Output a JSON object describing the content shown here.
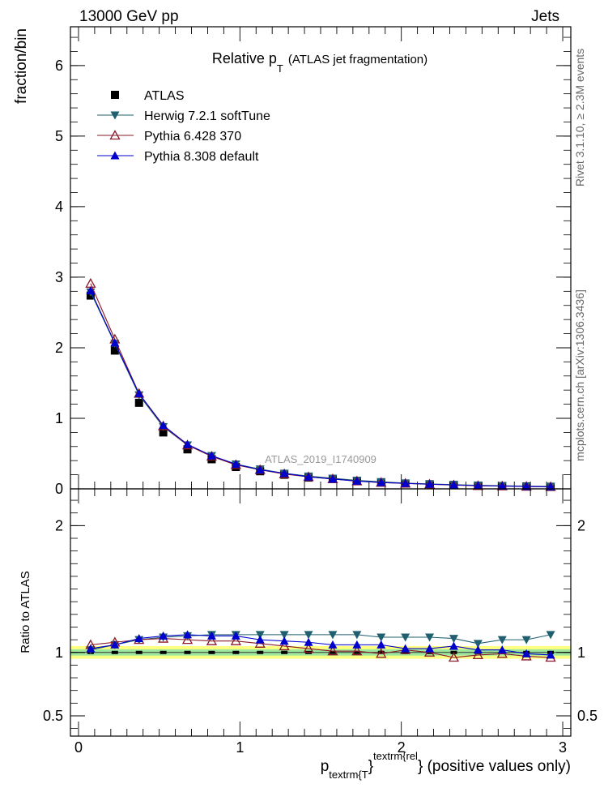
{
  "header": {
    "left": "13000 GeV pp",
    "right": "Jets"
  },
  "side_labels": {
    "rivet": "Rivet 3.1.10, ≥ 2.3M events",
    "mcplots": "mcplots.cern.ch [arXiv:1306.3436]"
  },
  "chart_data": [
    {
      "type": "scatter",
      "title": "Relative p",
      "title_sub": "T",
      "title_suffix": "(ATLAS jet fragmentation)",
      "watermark": "ATLAS_2019_I1740909",
      "ylabel": "fraction/bin",
      "xlim": [
        -0.05,
        3.05
      ],
      "ylim": [
        0,
        6.55
      ],
      "yticks": [
        0,
        1,
        2,
        3,
        4,
        5,
        6
      ],
      "legend_placement": "top-left",
      "x": [
        0.075,
        0.225,
        0.375,
        0.525,
        0.675,
        0.825,
        0.975,
        1.125,
        1.275,
        1.425,
        1.575,
        1.725,
        1.875,
        2.025,
        2.175,
        2.325,
        2.475,
        2.625,
        2.775,
        2.925
      ],
      "series": [
        {
          "name": "ATLAS",
          "color": "#000000",
          "marker": "square",
          "values": [
            2.74,
            1.96,
            1.22,
            0.8,
            0.56,
            0.42,
            0.31,
            0.25,
            0.2,
            0.16,
            0.14,
            0.11,
            0.09,
            0.075,
            0.065,
            0.055,
            0.045,
            0.04,
            0.035,
            0.03
          ]
        },
        {
          "name": "Herwig 7.2.1 softTune",
          "color": "#1f5f6f",
          "marker": "triangle-down",
          "values": [
            2.79,
            2.06,
            1.33,
            0.88,
            0.62,
            0.47,
            0.35,
            0.28,
            0.22,
            0.18,
            0.15,
            0.12,
            0.1,
            0.082,
            0.07,
            0.06,
            0.05,
            0.044,
            0.038,
            0.034
          ]
        },
        {
          "name": "Pythia 6.428 370",
          "color": "#8b1a2b",
          "marker": "triangle-up-open",
          "values": [
            2.91,
            2.12,
            1.35,
            0.89,
            0.62,
            0.46,
            0.34,
            0.27,
            0.21,
            0.17,
            0.14,
            0.11,
            0.09,
            0.077,
            0.065,
            0.053,
            0.044,
            0.039,
            0.034,
            0.029
          ]
        },
        {
          "name": "Pythia 8.308 default",
          "color": "#0000cc",
          "marker": "triangle-up",
          "values": [
            2.81,
            2.07,
            1.35,
            0.9,
            0.63,
            0.47,
            0.35,
            0.27,
            0.22,
            0.17,
            0.14,
            0.11,
            0.09,
            0.078,
            0.066,
            0.056,
            0.046,
            0.04,
            0.034,
            0.03
          ]
        }
      ]
    },
    {
      "type": "scatter",
      "ylabel": "Ratio to ATLAS",
      "xlabel_main": "p",
      "xlabel_sub": "textrm{T",
      "xlabel_brace": "}",
      "xlabel_sup": "textrm{rel",
      "xlabel_suffix": "} (positive values only)",
      "xlim": [
        -0.05,
        3.05
      ],
      "ylim": [
        0.34,
        2.29
      ],
      "yticks": [
        0.5,
        1,
        2
      ],
      "xticks": [
        0,
        1,
        2,
        3
      ],
      "band_inner": 0.025,
      "band_outer": 0.05,
      "x": [
        0.075,
        0.225,
        0.375,
        0.525,
        0.675,
        0.825,
        0.975,
        1.125,
        1.275,
        1.425,
        1.575,
        1.725,
        1.875,
        2.025,
        2.175,
        2.325,
        2.475,
        2.625,
        2.775,
        2.925
      ],
      "series": [
        {
          "name": "Herwig 7.2.1 softTune",
          "color": "#1f5f6f",
          "marker": "triangle-down",
          "values": [
            1.02,
            1.06,
            1.1,
            1.12,
            1.13,
            1.14,
            1.14,
            1.14,
            1.14,
            1.14,
            1.14,
            1.14,
            1.12,
            1.12,
            1.12,
            1.11,
            1.07,
            1.1,
            1.1,
            1.14
          ]
        },
        {
          "name": "Pythia 6.428 370",
          "color": "#8b1a2b",
          "marker": "triangle-up-open",
          "values": [
            1.06,
            1.08,
            1.1,
            1.11,
            1.1,
            1.09,
            1.09,
            1.07,
            1.05,
            1.03,
            1.01,
            1.01,
            0.99,
            1.02,
            1.0,
            0.96,
            0.98,
            0.99,
            0.97,
            0.96
          ]
        },
        {
          "name": "Pythia 8.308 default",
          "color": "#0000cc",
          "marker": "triangle-up",
          "values": [
            1.03,
            1.06,
            1.11,
            1.13,
            1.14,
            1.13,
            1.13,
            1.1,
            1.09,
            1.08,
            1.06,
            1.06,
            1.06,
            1.03,
            1.03,
            1.05,
            1.02,
            1.02,
            0.99,
            0.98
          ]
        }
      ]
    }
  ]
}
